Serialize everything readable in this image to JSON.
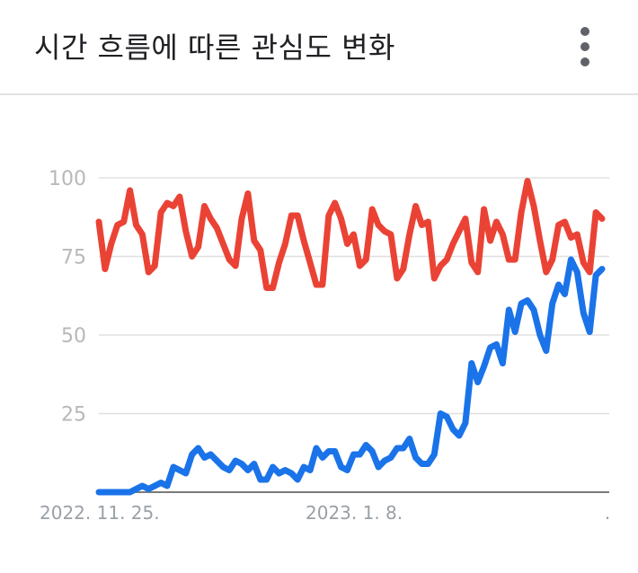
{
  "header": {
    "title": "시간 흐름에 따른 관심도 변화",
    "menu_icon": "more-vert-icon"
  },
  "chart_data": {
    "type": "line",
    "title": "시간 흐름에 따른 관심도 변화",
    "xlabel": "",
    "ylabel": "",
    "ylim": [
      0,
      100
    ],
    "yticks": [
      "100",
      "75",
      "50",
      "25"
    ],
    "xticks": [
      "2022. 11. 25.",
      "2023. 1. 8.",
      "."
    ],
    "grid": true,
    "legend": "none",
    "series": [
      {
        "color": "#ea4335",
        "values": [
          86,
          71,
          79,
          85,
          86,
          96,
          85,
          82,
          70,
          72,
          89,
          92,
          91,
          94,
          83,
          75,
          78,
          91,
          87,
          84,
          79,
          74,
          72,
          87,
          95,
          80,
          77,
          65,
          65,
          73,
          79,
          88,
          88,
          80,
          73,
          66,
          66,
          88,
          92,
          87,
          79,
          82,
          72,
          74,
          90,
          85,
          83,
          82,
          68,
          71,
          82,
          91,
          85,
          86,
          68,
          72,
          74,
          79,
          83,
          87,
          73,
          70,
          90,
          80,
          86,
          82,
          74,
          74,
          89,
          99,
          91,
          80,
          70,
          74,
          85,
          86,
          81,
          82,
          73,
          70,
          89,
          87
        ],
        "name": ""
      },
      {
        "color": "#1a73e8",
        "values": [
          0,
          0,
          0,
          0,
          0,
          0,
          1,
          2,
          1,
          2,
          3,
          2,
          8,
          7,
          6,
          12,
          14,
          11,
          12,
          10,
          8,
          7,
          10,
          9,
          7,
          9,
          4,
          4,
          8,
          6,
          7,
          6,
          4,
          8,
          7,
          14,
          11,
          13,
          13,
          8,
          7,
          12,
          12,
          15,
          13,
          8,
          10,
          11,
          14,
          14,
          17,
          11,
          9,
          9,
          12,
          25,
          24,
          20,
          18,
          22,
          41,
          35,
          40,
          46,
          47,
          41,
          58,
          51,
          60,
          61,
          58,
          50,
          45,
          60,
          66,
          63,
          74,
          70,
          57,
          51,
          69,
          71
        ],
        "name": ""
      }
    ]
  }
}
